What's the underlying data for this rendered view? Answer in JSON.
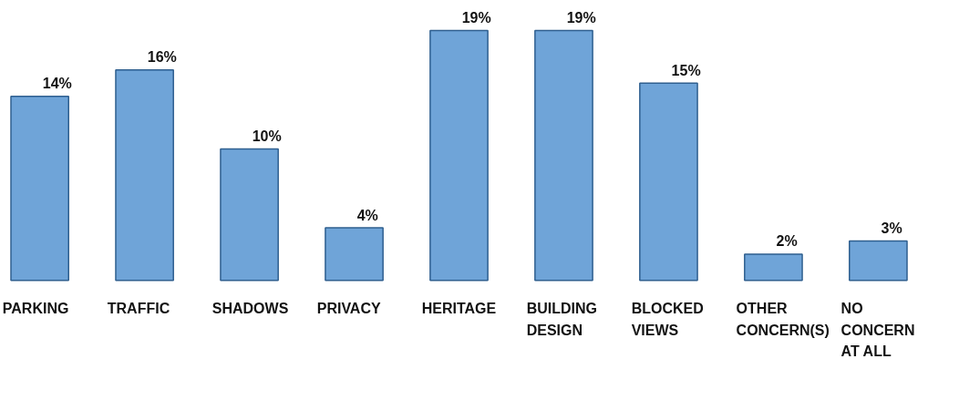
{
  "chart_data": {
    "type": "bar",
    "categories": [
      "PARKING",
      "TRAFFIC",
      "SHADOWS",
      "PRIVACY",
      "HERITAGE",
      "BUILDING\nDESIGN",
      "BLOCKED\nVIEWS",
      "OTHER\nCONCERN(S)",
      "NO\nCONCERN\nAT ALL"
    ],
    "values": [
      14,
      16,
      10,
      4,
      19,
      19,
      15,
      2,
      3
    ],
    "value_labels": [
      "14%",
      "16%",
      "10%",
      "4%",
      "19%",
      "19%",
      "15%",
      "2%",
      "3%"
    ],
    "color": "#6fa4d8"
  }
}
